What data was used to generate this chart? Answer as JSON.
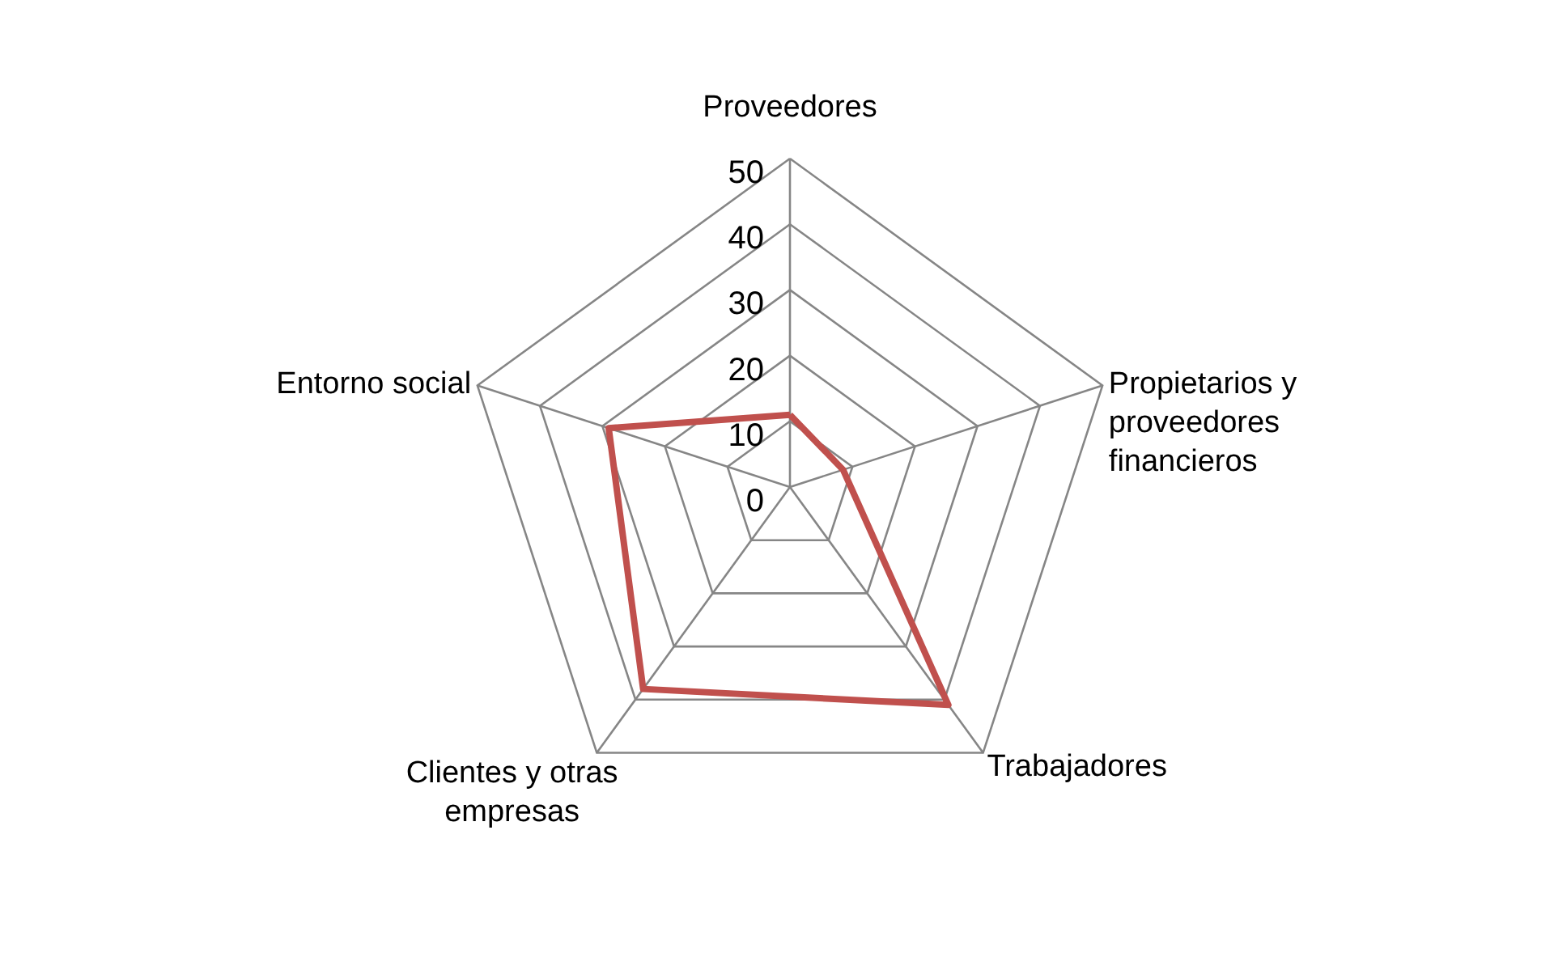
{
  "chart_data": {
    "type": "radar",
    "categories": [
      "Proveedores",
      "Propietarios y proveedores financieros",
      "Trabajadores",
      "Clientes y otras empresas",
      "Entorno social"
    ],
    "series": [
      {
        "color": "#c0504d",
        "values": [
          11,
          8.5,
          41,
          38,
          29
        ]
      }
    ],
    "ylim": [
      0,
      50
    ],
    "yticks": [
      0,
      10,
      20,
      30,
      40,
      50
    ],
    "grid": true
  }
}
